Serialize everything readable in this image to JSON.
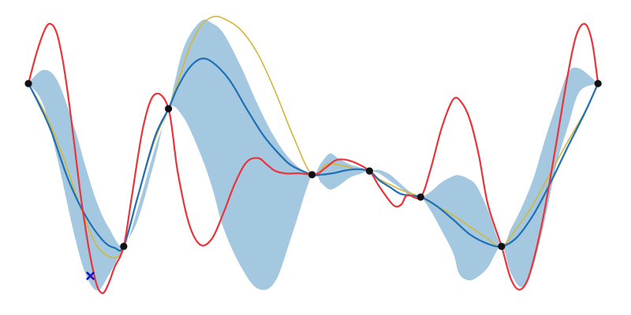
{
  "chart_data": {
    "type": "line",
    "xlim": [
      0,
      100
    ],
    "ylim": [
      -5,
      5
    ],
    "grid": false,
    "axes_visible": false,
    "colors": {
      "band": "#a5c8e1",
      "mean": "#1f6fb5",
      "red": "#e8343a",
      "yellow": "#d4b63a",
      "observed": "#111111",
      "candidate": "#1a16c9"
    },
    "observations": {
      "x": [
        0,
        16.6,
        24.4,
        49.4,
        59.4,
        68.3,
        82.4,
        99.2
      ],
      "y": [
        2.58,
        -3.1,
        1.7,
        -0.6,
        -0.47,
        -1.38,
        -3.1,
        2.58
      ]
    },
    "series": [
      {
        "kind": "band",
        "x": [
          0,
          2.5,
          5,
          8,
          10,
          12,
          14,
          16.6,
          19,
          22,
          24.4,
          27,
          30,
          32,
          34,
          37,
          40,
          43,
          46,
          49.4,
          51,
          52.5,
          54,
          56,
          58,
          59.4,
          61,
          63,
          65,
          66.5,
          68.3,
          70,
          72,
          74,
          75,
          76.5,
          78,
          80,
          82.4,
          84,
          86,
          88,
          90,
          92,
          94,
          96,
          99.2
        ],
        "upper": [
          2.58,
          3.05,
          2.7,
          1.05,
          -0.35,
          -1.6,
          -2.45,
          -3.1,
          -1.8,
          0.3,
          1.7,
          3.8,
          4.75,
          4.68,
          4.32,
          3.18,
          1.82,
          0.66,
          -0.15,
          -0.6,
          -0.19,
          0.14,
          -0.03,
          -0.24,
          -0.36,
          -0.47,
          -0.43,
          -0.6,
          -0.95,
          -1.2,
          -1.38,
          -1.2,
          -0.86,
          -0.65,
          -0.62,
          -0.73,
          -0.98,
          -1.82,
          -3.1,
          -2.5,
          -1.7,
          -0.7,
          0.65,
          1.85,
          2.96,
          3.1,
          2.58
        ],
        "lower": [
          2.58,
          1.88,
          0.0,
          -2.7,
          -4.08,
          -4.64,
          -4.1,
          -3.1,
          -2.2,
          -0.1,
          1.7,
          1.4,
          0.1,
          -1.05,
          -2.48,
          -3.8,
          -4.58,
          -4.32,
          -2.64,
          -0.6,
          -0.89,
          -1.12,
          -0.99,
          -0.7,
          -0.56,
          -0.47,
          -0.55,
          -0.82,
          -1.1,
          -1.35,
          -1.38,
          -1.84,
          -2.56,
          -3.35,
          -4.05,
          -4.28,
          -4.2,
          -3.84,
          -3.1,
          -4.02,
          -4.52,
          -3.72,
          -2.12,
          -0.22,
          1.1,
          2.3,
          2.58
        ]
      },
      {
        "kind": "line",
        "color_key": "yellow",
        "x": [
          0,
          3,
          6,
          9,
          12,
          15,
          16.6,
          19,
          22,
          24.4,
          26,
          28,
          30,
          32,
          34,
          37,
          40,
          43,
          46,
          49.4,
          52,
          55,
          57,
          59.4,
          61,
          63,
          65,
          68.3,
          71,
          74,
          77,
          80,
          82.4,
          85,
          88,
          91,
          94,
          97,
          99.2
        ],
        "y": [
          2.58,
          1.5,
          0.05,
          -1.7,
          -3.1,
          -3.5,
          -3.1,
          -1.4,
          0.6,
          1.7,
          2.6,
          3.8,
          4.58,
          4.9,
          4.85,
          4.45,
          3.6,
          2.3,
          0.8,
          -0.6,
          -0.23,
          -0.3,
          -0.4,
          -0.47,
          -0.74,
          -0.95,
          -1.14,
          -1.38,
          -1.68,
          -2.02,
          -2.43,
          -2.83,
          -3.1,
          -2.48,
          -1.6,
          -0.5,
          0.58,
          1.62,
          2.58
        ]
      },
      {
        "kind": "line",
        "color_key": "mean",
        "x": [
          0,
          2,
          4,
          7,
          10,
          13,
          15,
          16.6,
          19,
          22,
          24.4,
          26,
          28,
          30,
          32,
          35,
          38,
          41,
          44,
          46,
          49.4,
          51,
          53,
          55,
          57,
          59.4,
          61,
          63,
          65,
          68.3,
          71,
          74,
          77,
          80,
          82.4,
          85,
          88,
          91,
          94,
          97,
          99.2
        ],
        "y": [
          2.58,
          1.8,
          0.9,
          -0.8,
          -2.05,
          -2.9,
          -3.15,
          -3.1,
          -1.4,
          0.7,
          1.7,
          2.45,
          3.12,
          3.44,
          3.33,
          2.71,
          1.7,
          0.75,
          0.05,
          -0.3,
          -0.6,
          -0.6,
          -0.55,
          -0.46,
          -0.41,
          -0.47,
          -0.78,
          -1.04,
          -1.28,
          -1.38,
          -1.68,
          -2.17,
          -2.7,
          -3.01,
          -3.1,
          -2.8,
          -1.98,
          -0.85,
          0.4,
          1.6,
          2.58
        ]
      },
      {
        "kind": "line",
        "color_key": "red",
        "x": [
          0,
          1.5,
          3,
          4,
          5,
          6,
          7,
          8,
          9,
          10,
          11,
          12,
          13,
          14,
          15,
          16.6,
          18,
          20,
          22,
          24.4,
          26,
          28,
          30,
          32,
          34,
          36,
          38,
          40,
          41.5,
          43,
          45,
          47,
          49.4,
          50.5,
          52,
          53.5,
          55,
          57,
          59.4,
          61,
          63,
          64,
          65,
          66,
          68.3,
          70,
          72,
          74,
          75.5,
          77,
          78.5,
          80,
          82.4,
          84,
          85.5,
          87,
          88.5,
          90,
          92,
          94,
          95.5,
          97,
          98.2,
          99.2
        ],
        "y": [
          2.58,
          3.7,
          4.52,
          4.65,
          4.3,
          3.37,
          2.04,
          0.46,
          -1.17,
          -2.54,
          -3.68,
          -4.5,
          -4.73,
          -4.38,
          -3.83,
          -3.1,
          -1.37,
          1.08,
          2.2,
          1.7,
          -0.5,
          -2.33,
          -3.05,
          -2.82,
          -1.92,
          -0.89,
          -0.16,
          -0.02,
          -0.24,
          -0.47,
          -0.56,
          -0.55,
          -0.6,
          -0.55,
          -0.32,
          -0.1,
          -0.07,
          -0.19,
          -0.47,
          -0.98,
          -1.54,
          -1.71,
          -1.63,
          -1.31,
          -1.38,
          -0.44,
          1.05,
          2.03,
          1.9,
          1.25,
          0.02,
          -1.62,
          -3.1,
          -4.22,
          -4.61,
          -4.24,
          -3.16,
          -1.73,
          0.58,
          2.96,
          4.31,
          4.65,
          4.0,
          2.58
        ]
      }
    ],
    "candidate": {
      "x": 10.8,
      "y": -4.13,
      "marker": "x"
    }
  }
}
